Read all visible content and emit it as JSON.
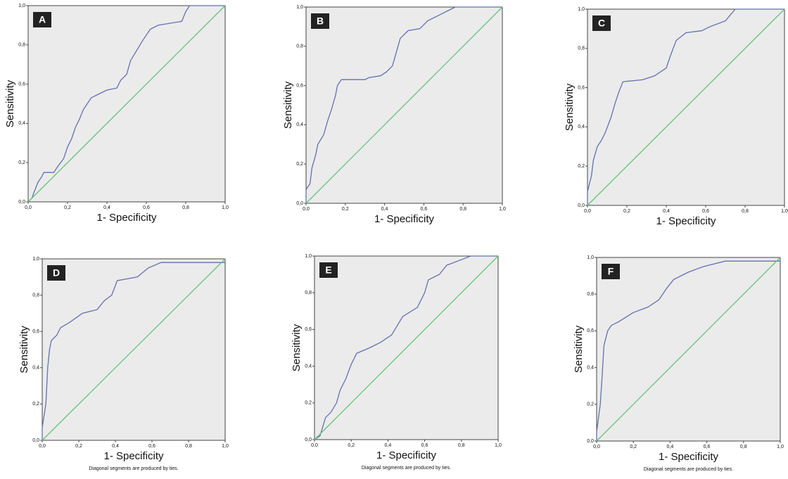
{
  "chart_data": [
    {
      "type": "line",
      "panel_label": "A",
      "xlabel": "1- Specificity",
      "ylabel": "Sensitivity",
      "xlim": [
        0,
        1
      ],
      "ylim": [
        0,
        1
      ],
      "xticks": [
        {
          "value": 0,
          "label": "0,0"
        },
        {
          "value": 0.2,
          "label": "0,2"
        },
        {
          "value": 0.4,
          "label": "0,4"
        },
        {
          "value": 0.6,
          "label": "0,6"
        },
        {
          "value": 0.8,
          "label": "0,8"
        },
        {
          "value": 1,
          "label": "1,0"
        }
      ],
      "yticks": [
        {
          "value": 0,
          "label": "0,0"
        },
        {
          "value": 0.2,
          "label": "0,2"
        },
        {
          "value": 0.4,
          "label": "0,4"
        },
        {
          "value": 0.6,
          "label": "0,6"
        },
        {
          "value": 0.8,
          "label": "0,8"
        },
        {
          "value": 1,
          "label": "1,0"
        }
      ],
      "series": [
        {
          "color": "#6470b0",
          "x": [
            0,
            0.02,
            0.03,
            0.05,
            0.07,
            0.08,
            0.13,
            0.15,
            0.18,
            0.2,
            0.22,
            0.24,
            0.26,
            0.28,
            0.3,
            0.32,
            0.36,
            0.4,
            0.45,
            0.47,
            0.5,
            0.52,
            0.55,
            0.58,
            0.62,
            0.66,
            0.78,
            0.8,
            0.82,
            1
          ],
          "values": [
            0,
            0.02,
            0.05,
            0.1,
            0.13,
            0.15,
            0.15,
            0.18,
            0.22,
            0.28,
            0.32,
            0.38,
            0.42,
            0.47,
            0.5,
            0.53,
            0.55,
            0.57,
            0.58,
            0.62,
            0.65,
            0.72,
            0.77,
            0.82,
            0.88,
            0.9,
            0.92,
            0.97,
            1,
            1
          ]
        },
        {
          "color": "#66c27a",
          "x": [
            0,
            1
          ],
          "values": [
            0,
            1
          ]
        }
      ]
    },
    {
      "type": "line",
      "panel_label": "B",
      "xlabel": "1- Specificity",
      "ylabel": "Sensitivity",
      "xlim": [
        0,
        1
      ],
      "ylim": [
        0,
        1
      ],
      "xticks": [
        {
          "value": 0,
          "label": "0,0"
        },
        {
          "value": 0.2,
          "label": "0,2"
        },
        {
          "value": 0.4,
          "label": "0,4"
        },
        {
          "value": 0.6,
          "label": "0,6"
        },
        {
          "value": 0.8,
          "label": "0,8"
        },
        {
          "value": 1,
          "label": "1,0"
        }
      ],
      "yticks": [
        {
          "value": 0,
          "label": "0,0"
        },
        {
          "value": 0.2,
          "label": "0,2"
        },
        {
          "value": 0.4,
          "label": "0,4"
        },
        {
          "value": 0.6,
          "label": "0,6"
        },
        {
          "value": 0.8,
          "label": "0,8"
        },
        {
          "value": 1,
          "label": "1,0"
        }
      ],
      "series": [
        {
          "color": "#6470b0",
          "x": [
            0,
            0,
            0.02,
            0.03,
            0.05,
            0.06,
            0.09,
            0.11,
            0.13,
            0.15,
            0.16,
            0.18,
            0.3,
            0.32,
            0.38,
            0.41,
            0.44,
            0.46,
            0.48,
            0.52,
            0.58,
            0.62,
            0.68,
            0.76,
            1
          ],
          "values": [
            0,
            0.07,
            0.1,
            0.18,
            0.25,
            0.3,
            0.35,
            0.42,
            0.48,
            0.55,
            0.6,
            0.63,
            0.63,
            0.64,
            0.65,
            0.67,
            0.7,
            0.77,
            0.84,
            0.88,
            0.89,
            0.93,
            0.96,
            1,
            1
          ]
        },
        {
          "color": "#66c27a",
          "x": [
            0,
            1
          ],
          "values": [
            0,
            1
          ]
        }
      ]
    },
    {
      "type": "line",
      "panel_label": "C",
      "xlabel": "1- Specificity",
      "ylabel": "Sensitivity",
      "xlim": [
        0,
        1
      ],
      "ylim": [
        0,
        1
      ],
      "xticks": [
        {
          "value": 0,
          "label": "0,0"
        },
        {
          "value": 0.2,
          "label": "0,2"
        },
        {
          "value": 0.4,
          "label": "0,4"
        },
        {
          "value": 0.6,
          "label": "0,6"
        },
        {
          "value": 0.8,
          "label": "0,8"
        },
        {
          "value": 1,
          "label": "1,0"
        }
      ],
      "yticks": [
        {
          "value": 0,
          "label": "0,0"
        },
        {
          "value": 0.2,
          "label": "0,2"
        },
        {
          "value": 0.4,
          "label": "0,4"
        },
        {
          "value": 0.6,
          "label": "0,6"
        },
        {
          "value": 0.8,
          "label": "0,8"
        },
        {
          "value": 1,
          "label": "1,0"
        }
      ],
      "series": [
        {
          "color": "#6470b0",
          "x": [
            0,
            0,
            0.02,
            0.03,
            0.05,
            0.07,
            0.09,
            0.12,
            0.14,
            0.16,
            0.18,
            0.28,
            0.34,
            0.4,
            0.42,
            0.45,
            0.5,
            0.58,
            0.62,
            0.7,
            0.75,
            1
          ],
          "values": [
            0,
            0.07,
            0.15,
            0.23,
            0.3,
            0.33,
            0.37,
            0.45,
            0.52,
            0.58,
            0.63,
            0.64,
            0.66,
            0.7,
            0.76,
            0.84,
            0.88,
            0.89,
            0.91,
            0.94,
            1,
            1
          ]
        },
        {
          "color": "#66c27a",
          "x": [
            0,
            1
          ],
          "values": [
            0,
            1
          ]
        }
      ]
    },
    {
      "type": "line",
      "panel_label": "D",
      "xlabel": "1- Specificity",
      "ylabel": "Sensitivity",
      "note": "Diagonal segments are produced by ties.",
      "xlim": [
        0,
        1
      ],
      "ylim": [
        0,
        1
      ],
      "xticks": [
        {
          "value": 0,
          "label": "0,0"
        },
        {
          "value": 0.2,
          "label": "0,2"
        },
        {
          "value": 0.4,
          "label": "0,4"
        },
        {
          "value": 0.6,
          "label": "0,6"
        },
        {
          "value": 0.8,
          "label": "0,8"
        },
        {
          "value": 1,
          "label": "1,0"
        }
      ],
      "yticks": [
        {
          "value": 0,
          "label": "0,0"
        },
        {
          "value": 0.2,
          "label": "0,2"
        },
        {
          "value": 0.4,
          "label": "0,4"
        },
        {
          "value": 0.6,
          "label": "0,6"
        },
        {
          "value": 0.8,
          "label": "0,8"
        },
        {
          "value": 1,
          "label": "1,0"
        }
      ],
      "series": [
        {
          "color": "#6470b0",
          "x": [
            0,
            0,
            0.02,
            0.03,
            0.04,
            0.05,
            0.08,
            0.1,
            0.15,
            0.22,
            0.3,
            0.34,
            0.38,
            0.41,
            0.52,
            0.58,
            0.65,
            1
          ],
          "values": [
            0,
            0.07,
            0.2,
            0.4,
            0.5,
            0.55,
            0.58,
            0.62,
            0.65,
            0.7,
            0.72,
            0.77,
            0.8,
            0.88,
            0.9,
            0.95,
            0.98,
            0.98
          ]
        },
        {
          "color": "#66c27a",
          "x": [
            0,
            1
          ],
          "values": [
            0,
            1
          ]
        }
      ]
    },
    {
      "type": "line",
      "panel_label": "E",
      "xlabel": "1- Specificity",
      "ylabel": "Sensitivity",
      "note": "Diagonal segments are produced by ties.",
      "xlim": [
        0,
        1
      ],
      "ylim": [
        0,
        1
      ],
      "xticks": [
        {
          "value": 0,
          "label": "0,0"
        },
        {
          "value": 0.2,
          "label": "0,2"
        },
        {
          "value": 0.4,
          "label": "0,4"
        },
        {
          "value": 0.6,
          "label": "0,6"
        },
        {
          "value": 0.8,
          "label": "0,8"
        },
        {
          "value": 1,
          "label": "1,0"
        }
      ],
      "yticks": [
        {
          "value": 0,
          "label": "0,0"
        },
        {
          "value": 0.2,
          "label": "0,2"
        },
        {
          "value": 0.4,
          "label": "0,4"
        },
        {
          "value": 0.6,
          "label": "0,6"
        },
        {
          "value": 0.8,
          "label": "0,8"
        },
        {
          "value": 1,
          "label": "1,0"
        }
      ],
      "series": [
        {
          "color": "#6470b0",
          "x": [
            0,
            0.03,
            0.06,
            0.09,
            0.12,
            0.14,
            0.17,
            0.2,
            0.23,
            0.3,
            0.36,
            0.42,
            0.45,
            0.48,
            0.56,
            0.6,
            0.62,
            0.68,
            0.72,
            0.8,
            0.85,
            1
          ],
          "values": [
            0,
            0.02,
            0.12,
            0.15,
            0.2,
            0.27,
            0.33,
            0.41,
            0.47,
            0.5,
            0.53,
            0.57,
            0.62,
            0.67,
            0.72,
            0.8,
            0.87,
            0.9,
            0.95,
            0.98,
            1,
            1
          ]
        },
        {
          "color": "#66c27a",
          "x": [
            0,
            1
          ],
          "values": [
            0,
            1
          ]
        }
      ]
    },
    {
      "type": "line",
      "panel_label": "F",
      "xlabel": "1- Specificity",
      "ylabel": "Sensitivity",
      "note": "Diagonal segments are produced by ties.",
      "xlim": [
        0,
        1
      ],
      "ylim": [
        0,
        1
      ],
      "xticks": [
        {
          "value": 0,
          "label": "0,0"
        },
        {
          "value": 0.2,
          "label": "0,2"
        },
        {
          "value": 0.4,
          "label": "0,4"
        },
        {
          "value": 0.6,
          "label": "0,6"
        },
        {
          "value": 0.8,
          "label": "0,8"
        },
        {
          "value": 1,
          "label": "1,0"
        }
      ],
      "yticks": [
        {
          "value": 0,
          "label": "0,0"
        },
        {
          "value": 0.2,
          "label": "0,2"
        },
        {
          "value": 0.4,
          "label": "0,4"
        },
        {
          "value": 0.6,
          "label": "0,6"
        },
        {
          "value": 0.8,
          "label": "0,8"
        },
        {
          "value": 1,
          "label": "1,0"
        }
      ],
      "series": [
        {
          "color": "#6470b0",
          "x": [
            0,
            0,
            0.02,
            0.03,
            0.04,
            0.06,
            0.08,
            0.12,
            0.2,
            0.28,
            0.34,
            0.38,
            0.42,
            0.5,
            0.58,
            0.7,
            1
          ],
          "values": [
            0,
            0.05,
            0.2,
            0.35,
            0.52,
            0.6,
            0.63,
            0.65,
            0.7,
            0.73,
            0.77,
            0.83,
            0.88,
            0.92,
            0.95,
            0.98,
            0.98
          ]
        },
        {
          "color": "#66c27a",
          "x": [
            0,
            1
          ],
          "values": [
            0,
            1
          ]
        }
      ]
    }
  ]
}
